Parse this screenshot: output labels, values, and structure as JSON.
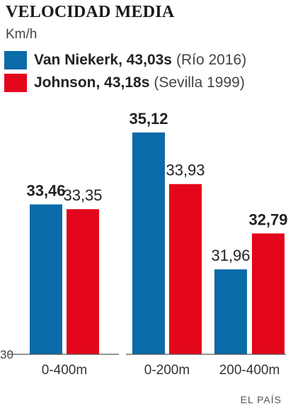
{
  "title": "VELOCIDAD MEDIA",
  "unit": "Km/h",
  "legend": [
    {
      "name": "Van Niekerk, 43,03s",
      "extra": "(Río 2016)",
      "color": "#0b6aa8"
    },
    {
      "name": "Johnson, 43,18s",
      "extra": "(Sevilla 1999)",
      "color": "#e3051b"
    }
  ],
  "credit": "EL PAÍS",
  "chart_data": {
    "type": "bar",
    "categories": [
      "0-400m",
      "0-200m",
      "200-400m"
    ],
    "series": [
      {
        "name": "Van Niekerk, 43,03s",
        "values": [
          33.46,
          35.12,
          31.96
        ],
        "labels": [
          "33,46",
          "35,12",
          "31,96"
        ],
        "bold": [
          true,
          true,
          false
        ],
        "color": "#0b6aa8"
      },
      {
        "name": "Johnson, 43,18s",
        "values": [
          33.35,
          33.93,
          32.79
        ],
        "labels": [
          "33,35",
          "33,93",
          "32,79"
        ],
        "bold": [
          false,
          false,
          true
        ],
        "color": "#e3051b"
      }
    ],
    "ybase_label": "30",
    "ylim": [
      30,
      35.12
    ]
  }
}
